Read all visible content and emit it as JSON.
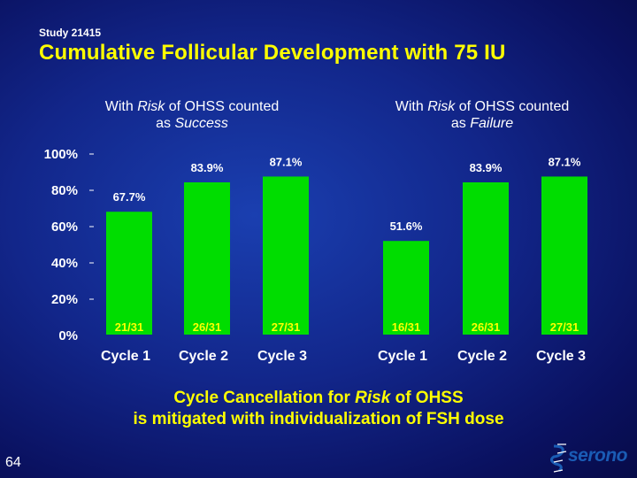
{
  "header": {
    "study": "Study 21415",
    "title": "Cumulative Follicular Development with 75 IU"
  },
  "panels": [
    {
      "line1_pre": "With ",
      "line1_em": "Risk",
      "line1_post": " of OHSS counted",
      "line2_pre": "as ",
      "line2_em": "Success"
    },
    {
      "line1_pre": "With ",
      "line1_em": "Risk",
      "line1_post": " of OHSS counted",
      "line2_pre": "as ",
      "line2_em": "Failure"
    }
  ],
  "chart_data": {
    "type": "bar",
    "ylabel": "",
    "ylim": [
      0,
      100
    ],
    "yticks": [
      "0%",
      "20%",
      "40%",
      "60%",
      "80%",
      "100%"
    ],
    "categories": [
      "Cycle 1",
      "Cycle 2",
      "Cycle 3"
    ],
    "bar_color": "#00dd00",
    "label_color": "#ffffff",
    "count_color": "#ffff00",
    "groups": [
      {
        "name": "With Risk of OHSS counted as Success",
        "values": [
          67.7,
          83.9,
          87.1
        ],
        "labels": [
          "67.7%",
          "83.9%",
          "87.1%"
        ],
        "counts": [
          "21/31",
          "26/31",
          "27/31"
        ]
      },
      {
        "name": "With Risk of OHSS counted as Failure",
        "values": [
          51.6,
          83.9,
          87.1
        ],
        "labels": [
          "51.6%",
          "83.9%",
          "87.1%"
        ],
        "counts": [
          "16/31",
          "26/31",
          "27/31"
        ]
      }
    ]
  },
  "caption": {
    "line1_pre": "Cycle Cancellation for ",
    "line1_em": "Risk",
    "line1_post": " of OHSS",
    "line2": "is mitigated with individualization of FSH dose"
  },
  "footer": {
    "page_number": "64",
    "logo_text": "serono"
  },
  "colors": {
    "title": "#ffff00",
    "background": "#12268a",
    "logo": "#1a5cb5"
  }
}
